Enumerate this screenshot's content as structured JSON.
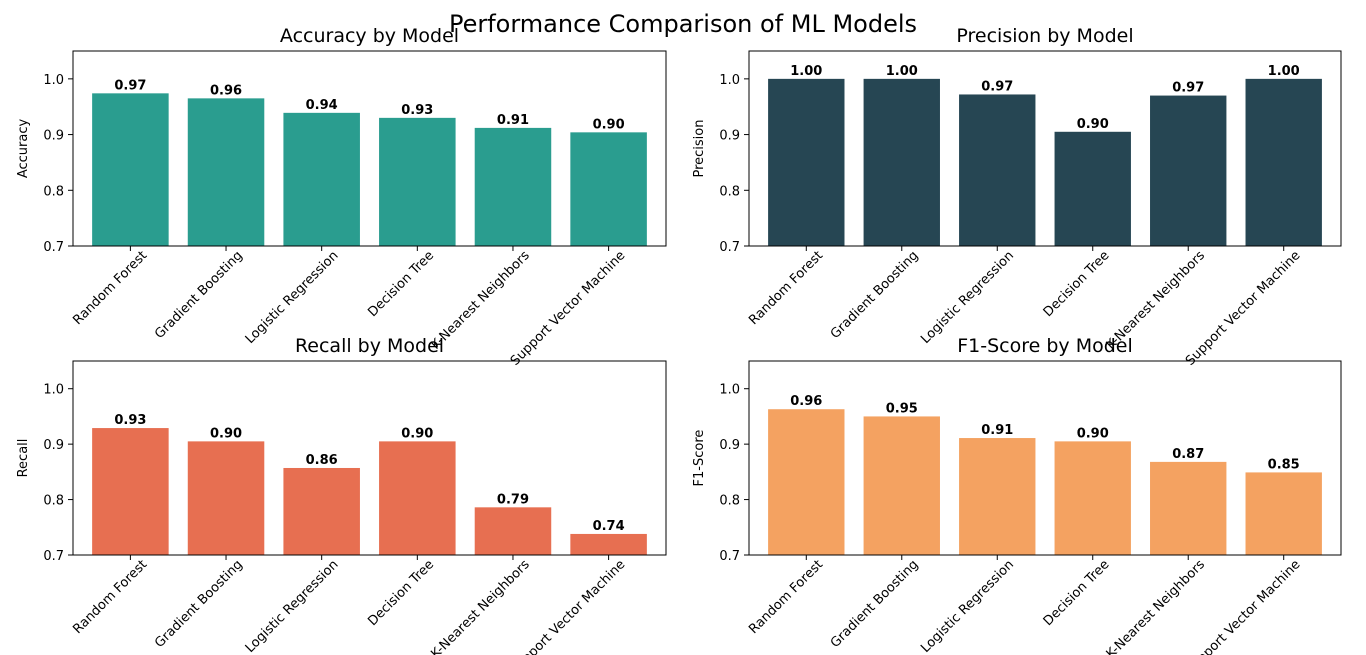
{
  "figure": {
    "title": "Performance Comparison of ML Models"
  },
  "chart_data": [
    {
      "type": "bar",
      "title": "Accuracy by Model",
      "xlabel": "",
      "ylabel": "Accuracy",
      "ylim": [
        0.7,
        1.05
      ],
      "yticks": [
        "0.7",
        "0.8",
        "0.9",
        "1.0"
      ],
      "categories": [
        "Random Forest",
        "Gradient Boosting",
        "Logistic Regression",
        "Decision Tree",
        "K-Nearest Neighbors",
        "Support Vector Machine"
      ],
      "values": [
        0.974,
        0.965,
        0.939,
        0.93,
        0.912,
        0.904
      ],
      "labels": [
        "0.97",
        "0.96",
        "0.94",
        "0.93",
        "0.91",
        "0.90"
      ],
      "color": "#2a9d8f",
      "grid": false,
      "legend": "none"
    },
    {
      "type": "bar",
      "title": "Precision by Model",
      "xlabel": "",
      "ylabel": "Precision",
      "ylim": [
        0.7,
        1.05
      ],
      "yticks": [
        "0.7",
        "0.8",
        "0.9",
        "1.0"
      ],
      "categories": [
        "Random Forest",
        "Gradient Boosting",
        "Logistic Regression",
        "Decision Tree",
        "K-Nearest Neighbors",
        "Support Vector Machine"
      ],
      "values": [
        1.0,
        1.0,
        0.972,
        0.905,
        0.97,
        1.0
      ],
      "labels": [
        "1.00",
        "1.00",
        "0.97",
        "0.90",
        "0.97",
        "1.00"
      ],
      "color": "#264653",
      "grid": false,
      "legend": "none"
    },
    {
      "type": "bar",
      "title": "Recall by Model",
      "xlabel": "",
      "ylabel": "Recall",
      "ylim": [
        0.7,
        1.05
      ],
      "yticks": [
        "0.7",
        "0.8",
        "0.9",
        "1.0"
      ],
      "categories": [
        "Random Forest",
        "Gradient Boosting",
        "Logistic Regression",
        "Decision Tree",
        "K-Nearest Neighbors",
        "Support Vector Machine"
      ],
      "values": [
        0.929,
        0.905,
        0.857,
        0.905,
        0.786,
        0.738
      ],
      "labels": [
        "0.93",
        "0.90",
        "0.86",
        "0.90",
        "0.79",
        "0.74"
      ],
      "color": "#e76f51",
      "grid": false,
      "legend": "none"
    },
    {
      "type": "bar",
      "title": "F1-Score by Model",
      "xlabel": "",
      "ylabel": "F1-Score",
      "ylim": [
        0.7,
        1.05
      ],
      "yticks": [
        "0.7",
        "0.8",
        "0.9",
        "1.0"
      ],
      "categories": [
        "Random Forest",
        "Gradient Boosting",
        "Logistic Regression",
        "Decision Tree",
        "K-Nearest Neighbors",
        "Support Vector Machine"
      ],
      "values": [
        0.963,
        0.95,
        0.911,
        0.905,
        0.868,
        0.849
      ],
      "labels": [
        "0.96",
        "0.95",
        "0.91",
        "0.90",
        "0.87",
        "0.85"
      ],
      "color": "#f4a261",
      "grid": false,
      "legend": "none"
    }
  ]
}
